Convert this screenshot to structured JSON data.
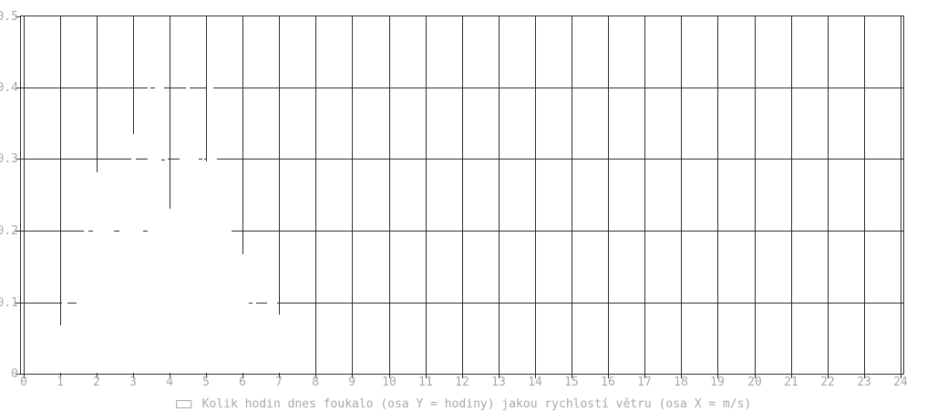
{
  "chart_data": {
    "type": "histogram",
    "title": "",
    "legend": {
      "marker": "box-outline",
      "label": "Kolik hodin dnes foukalo (osa Y = hodiny) jakou rychlostí větru (osa X = m/s)"
    },
    "x_axis": {
      "range": [
        0,
        24
      ],
      "tick_step": 1,
      "tick_labels": [
        "0",
        "1",
        "2",
        "3",
        "4",
        "5",
        "6",
        "7",
        "8",
        "9",
        "10",
        "11",
        "12",
        "13",
        "14",
        "15",
        "16",
        "17",
        "18",
        "19",
        "20",
        "21",
        "22",
        "23",
        "24"
      ]
    },
    "y_axis": {
      "range": [
        0,
        0.5
      ],
      "tick_step": 0.1,
      "tick_labels": [
        "0",
        "0.1",
        "0.2",
        "0.3",
        "0.4",
        "0.5"
      ]
    },
    "grid": "on",
    "series": [
      {
        "name": "Kolik hodin dnes foukalo (osa Y = hodiny) jakou rychlostí větru (osa X = m/s)",
        "style": "boxes-white-fill",
        "segments_x1_x2_height": [
          [
            0.05,
            0.95,
            0.03
          ],
          [
            0.95,
            1.05,
            0.067
          ],
          [
            1.05,
            1.2,
            0.13
          ],
          [
            1.2,
            1.45,
            0.09
          ],
          [
            1.45,
            1.66,
            0.15
          ],
          [
            1.66,
            1.79,
            0.23
          ],
          [
            1.79,
            1.91,
            0.17
          ],
          [
            1.91,
            2.49,
            0.282
          ],
          [
            2.49,
            2.62,
            0.17
          ],
          [
            2.62,
            2.95,
            0.27
          ],
          [
            2.95,
            3.09,
            0.335
          ],
          [
            3.09,
            3.28,
            0.27
          ],
          [
            3.28,
            3.41,
            0.18
          ],
          [
            3.41,
            3.49,
            0.45
          ],
          [
            3.49,
            3.6,
            0.37
          ],
          [
            3.6,
            3.85,
            0.45
          ],
          [
            3.85,
            3.95,
            0.33
          ],
          [
            3.95,
            4.28,
            0.231
          ],
          [
            4.28,
            4.45,
            0.33
          ],
          [
            4.45,
            4.56,
            0.45
          ],
          [
            4.56,
            4.79,
            0.37
          ],
          [
            4.79,
            4.9,
            0.25
          ],
          [
            4.9,
            4.96,
            0.335
          ],
          [
            4.96,
            5.03,
            0.297
          ],
          [
            5.03,
            5.21,
            0.45
          ],
          [
            5.21,
            5.29,
            0.335
          ],
          [
            5.29,
            5.69,
            0.28
          ],
          [
            5.69,
            5.9,
            0.18
          ],
          [
            5.9,
            6.17,
            0.167
          ],
          [
            6.17,
            6.27,
            0.09
          ],
          [
            6.27,
            6.36,
            0.13
          ],
          [
            6.36,
            6.68,
            0.09
          ],
          [
            6.68,
            6.95,
            0.13
          ],
          [
            6.95,
            7.05,
            0.083
          ],
          [
            7.05,
            7.3,
            0.05
          ],
          [
            7.3,
            7.5,
            0.02
          ]
        ],
        "gridline_visible_down_to_at_x": {
          "1": 0.067,
          "2": 0.282,
          "3": 0.335,
          "4": 0.231,
          "5": 0.297,
          "6": 0.167,
          "7": 0.083
        }
      }
    ],
    "extra_marks_x1_x2_y": [
      [
        3.78,
        3.88,
        0.3
      ]
    ]
  },
  "colors": {
    "background": "#ffffff",
    "plot_lines": "#2e2e2e",
    "tick_labels": "#a8a8a8",
    "legend_text": "#a8a8a8",
    "data_fill": "#ffffff"
  }
}
